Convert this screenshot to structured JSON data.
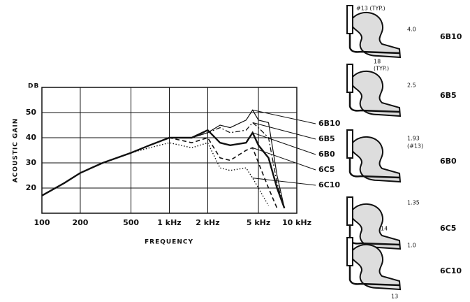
{
  "chart_data": {
    "type": "line",
    "y_unit": "DB",
    "ylabel": "ACOUSTIC GAIN",
    "xlabel": "FREQUENCY",
    "log_x": true,
    "grid": true,
    "xlim": [
      100,
      10000
    ],
    "ylim": [
      10,
      60
    ],
    "xticks": [
      100,
      200,
      500,
      {
        "value": 1000,
        "label": "1 kHz"
      },
      {
        "value": 2000,
        "label": "2 kHz"
      },
      {
        "value": 5000,
        "label": "5 kHz"
      },
      {
        "value": 10000,
        "label": "10 kHz"
      }
    ],
    "yticks": [
      20,
      30,
      40,
      50
    ],
    "x": [
      100,
      150,
      200,
      300,
      500,
      700,
      1000,
      1500,
      2000,
      2500,
      3000,
      4000,
      4500,
      5000,
      6000,
      7000,
      8000
    ],
    "series": [
      {
        "name": "6B10",
        "color": "#111",
        "dash": "solid-thin",
        "values": [
          17,
          22,
          26,
          30,
          34,
          37,
          40,
          40,
          42,
          45,
          44,
          47,
          51,
          47,
          46,
          25,
          12
        ]
      },
      {
        "name": "6B5",
        "color": "#111",
        "dash": "dashdot",
        "values": [
          17,
          22,
          26,
          30,
          34,
          37,
          40,
          40,
          42,
          44,
          42,
          43,
          46,
          44,
          40,
          22,
          12
        ]
      },
      {
        "name": "6B0",
        "color": "#111",
        "dash": "solid-thick",
        "values": [
          17,
          22,
          26,
          30,
          34,
          37,
          40,
          40,
          43,
          38,
          37,
          38,
          42,
          37,
          32,
          20,
          12
        ]
      },
      {
        "name": "6C5",
        "color": "#111",
        "dash": "dashed",
        "values": [
          17,
          22,
          26,
          30,
          34,
          37,
          40,
          38,
          40,
          32,
          31,
          35,
          36,
          30,
          20,
          12,
          null
        ]
      },
      {
        "name": "6C10",
        "color": "#111",
        "dash": "dotted",
        "values": [
          17,
          22,
          26,
          30,
          34,
          36,
          38,
          36,
          38,
          28,
          27,
          28,
          24,
          20,
          13,
          null,
          null
        ]
      }
    ]
  },
  "diagrams": [
    {
      "label": "6B10",
      "notes": [
        "#13 (TYP.)",
        "4.0",
        "18",
        "(TYP.)"
      ]
    },
    {
      "label": "6B5",
      "notes": [
        "2.5"
      ]
    },
    {
      "label": "6B0",
      "notes": [
        "1.93",
        "(#13)"
      ]
    },
    {
      "label": "6C5",
      "notes": [
        "1.35",
        "14"
      ]
    },
    {
      "label": "6C10",
      "notes": [
        "1.0",
        "13"
      ]
    }
  ]
}
